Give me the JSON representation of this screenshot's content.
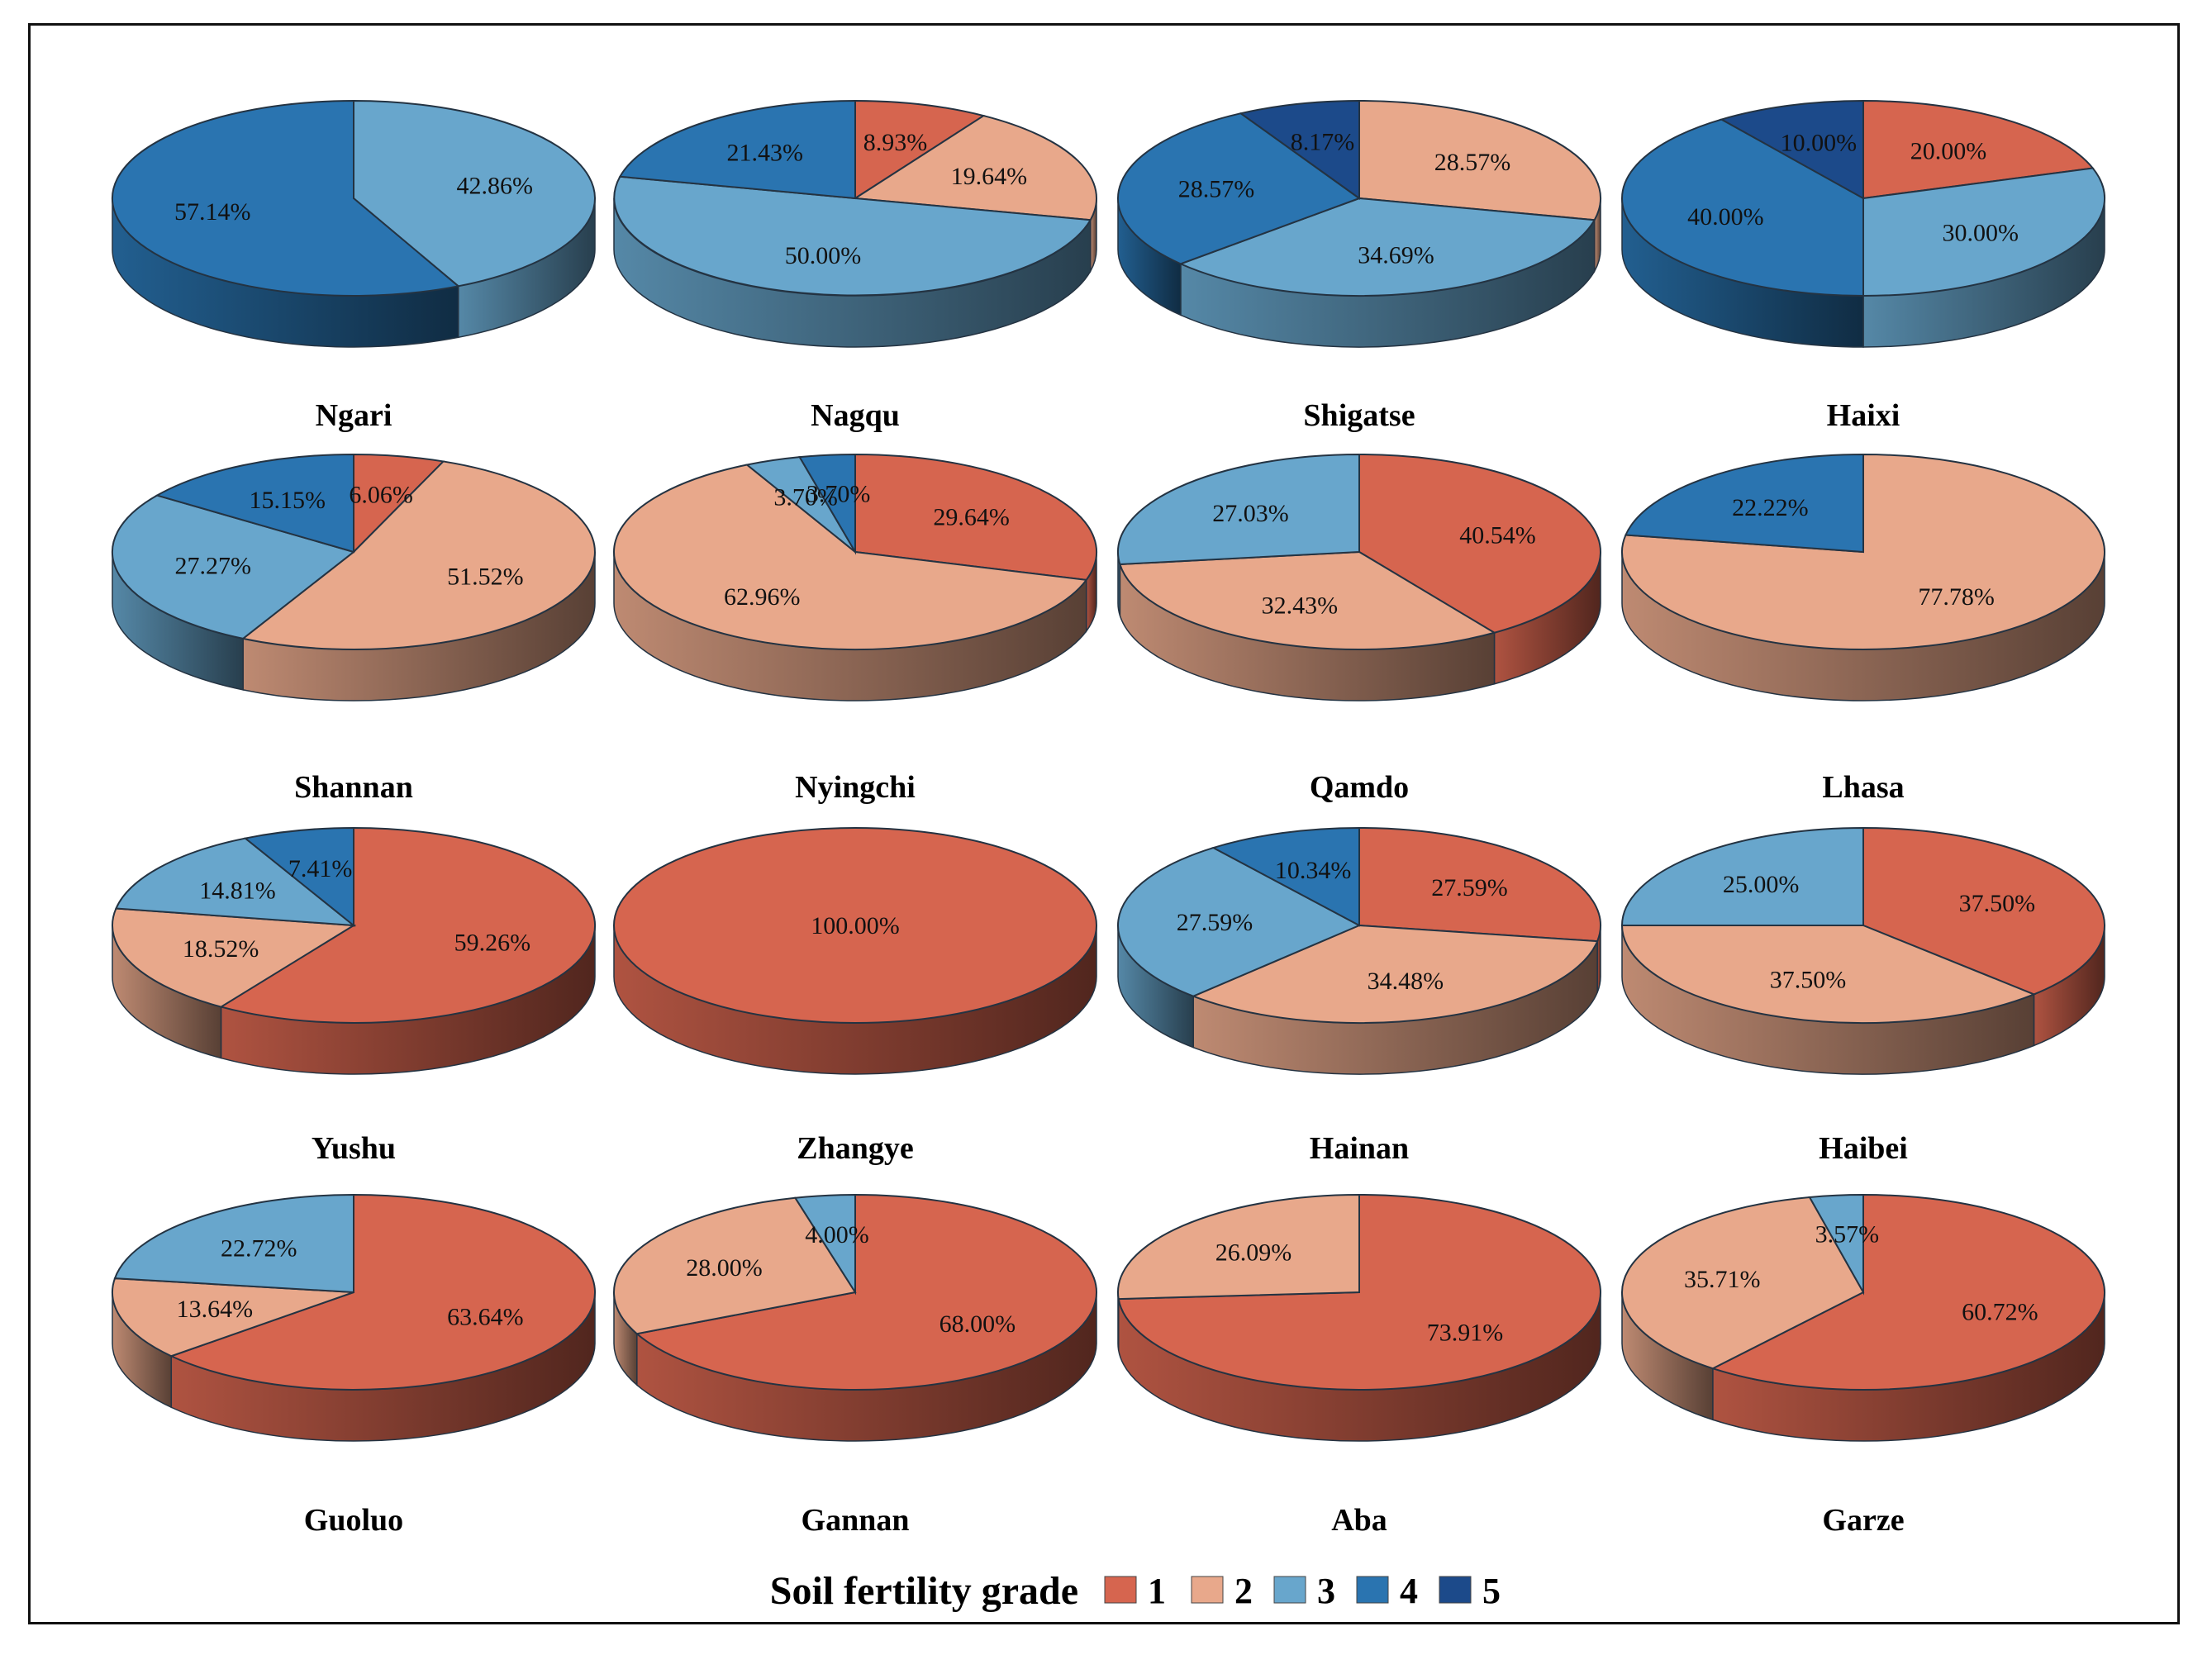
{
  "colors": {
    "1": "#d6654f",
    "2": "#e8a88b",
    "3": "#68a6cc",
    "4": "#2a74b0",
    "5": "#1c4a8a",
    "outline": "#243342"
  },
  "chart_data": {
    "type": "pie",
    "style": "3d",
    "title": "",
    "legend": {
      "title": "Soil fertility grade",
      "grades": [
        "1",
        "2",
        "3",
        "4",
        "5"
      ],
      "placement": "bottom-center"
    },
    "pies": [
      {
        "name": "Ngari",
        "slices": [
          {
            "grade": "3",
            "value": 42.86,
            "label": "42.86%"
          },
          {
            "grade": "4",
            "value": 57.14,
            "label": "57.14%"
          }
        ]
      },
      {
        "name": "Nagqu",
        "slices": [
          {
            "grade": "1",
            "value": 8.93,
            "label": "8.93%"
          },
          {
            "grade": "2",
            "value": 19.64,
            "label": "19.64%"
          },
          {
            "grade": "3",
            "value": 50.0,
            "label": "50.00%"
          },
          {
            "grade": "4",
            "value": 21.43,
            "label": "21.43%"
          }
        ]
      },
      {
        "name": "Shigatse",
        "slices": [
          {
            "grade": "2",
            "value": 28.57,
            "label": "28.57%"
          },
          {
            "grade": "3",
            "value": 34.69,
            "label": "34.69%"
          },
          {
            "grade": "4",
            "value": 28.57,
            "label": "28.57%"
          },
          {
            "grade": "5",
            "value": 8.17,
            "label": "8.17%"
          }
        ]
      },
      {
        "name": "Haixi",
        "slices": [
          {
            "grade": "1",
            "value": 20.0,
            "label": "20.00%"
          },
          {
            "grade": "3",
            "value": 30.0,
            "label": "30.00%"
          },
          {
            "grade": "4",
            "value": 40.0,
            "label": "40.00%"
          },
          {
            "grade": "5",
            "value": 10.0,
            "label": "10.00%"
          }
        ]
      },
      {
        "name": "Shannan",
        "slices": [
          {
            "grade": "1",
            "value": 6.06,
            "label": "6.06%"
          },
          {
            "grade": "2",
            "value": 51.52,
            "label": "51.52%"
          },
          {
            "grade": "3",
            "value": 27.27,
            "label": "27.27%"
          },
          {
            "grade": "4",
            "value": 15.15,
            "label": "15.15%"
          }
        ]
      },
      {
        "name": "Nyingchi",
        "slices": [
          {
            "grade": "1",
            "value": 29.64,
            "label": "29.64%"
          },
          {
            "grade": "2",
            "value": 62.96,
            "label": "62.96%"
          },
          {
            "grade": "3",
            "value": 3.7,
            "label": "3.70%"
          },
          {
            "grade": "4",
            "value": 3.7,
            "label": "3.70%"
          }
        ]
      },
      {
        "name": "Qamdo",
        "slices": [
          {
            "grade": "1",
            "value": 40.54,
            "label": "40.54%"
          },
          {
            "grade": "2",
            "value": 32.43,
            "label": "32.43%"
          },
          {
            "grade": "3",
            "value": 27.03,
            "label": "27.03%"
          }
        ]
      },
      {
        "name": "Lhasa",
        "slices": [
          {
            "grade": "2",
            "value": 77.78,
            "label": "77.78%"
          },
          {
            "grade": "4",
            "value": 22.22,
            "label": "22.22%"
          }
        ]
      },
      {
        "name": "Yushu",
        "slices": [
          {
            "grade": "1",
            "value": 59.26,
            "label": "59.26%"
          },
          {
            "grade": "2",
            "value": 18.52,
            "label": "18.52%"
          },
          {
            "grade": "3",
            "value": 14.81,
            "label": "14.81%"
          },
          {
            "grade": "4",
            "value": 7.41,
            "label": "7.41%"
          }
        ]
      },
      {
        "name": "Zhangye",
        "slices": [
          {
            "grade": "1",
            "value": 100.0,
            "label": "100.00%"
          }
        ]
      },
      {
        "name": "Hainan",
        "slices": [
          {
            "grade": "1",
            "value": 27.59,
            "label": "27.59%"
          },
          {
            "grade": "2",
            "value": 34.48,
            "label": "34.48%"
          },
          {
            "grade": "3",
            "value": 27.59,
            "label": "27.59%"
          },
          {
            "grade": "4",
            "value": 10.34,
            "label": "10.34%"
          }
        ]
      },
      {
        "name": "Haibei",
        "slices": [
          {
            "grade": "1",
            "value": 37.5,
            "label": "37.50%"
          },
          {
            "grade": "2",
            "value": 37.5,
            "label": "37.50%"
          },
          {
            "grade": "3",
            "value": 25.0,
            "label": "25.00%"
          }
        ]
      },
      {
        "name": "Guoluo",
        "slices": [
          {
            "grade": "1",
            "value": 63.64,
            "label": "63.64%"
          },
          {
            "grade": "2",
            "value": 13.64,
            "label": "13.64%"
          },
          {
            "grade": "3",
            "value": 22.72,
            "label": "22.72%"
          }
        ]
      },
      {
        "name": "Gannan",
        "slices": [
          {
            "grade": "1",
            "value": 68.0,
            "label": "68.00%"
          },
          {
            "grade": "2",
            "value": 28.0,
            "label": "28.00%"
          },
          {
            "grade": "3",
            "value": 4.0,
            "label": "4.00%"
          }
        ]
      },
      {
        "name": "Aba",
        "slices": [
          {
            "grade": "1",
            "value": 73.91,
            "label": "73.91%"
          },
          {
            "grade": "2",
            "value": 26.09,
            "label": "26.09%"
          }
        ]
      },
      {
        "name": "Garze",
        "slices": [
          {
            "grade": "1",
            "value": 60.72,
            "label": "60.72%"
          },
          {
            "grade": "2",
            "value": 35.71,
            "label": "35.71%"
          },
          {
            "grade": "3",
            "value": 3.57,
            "label": "3.57%"
          }
        ]
      }
    ]
  }
}
